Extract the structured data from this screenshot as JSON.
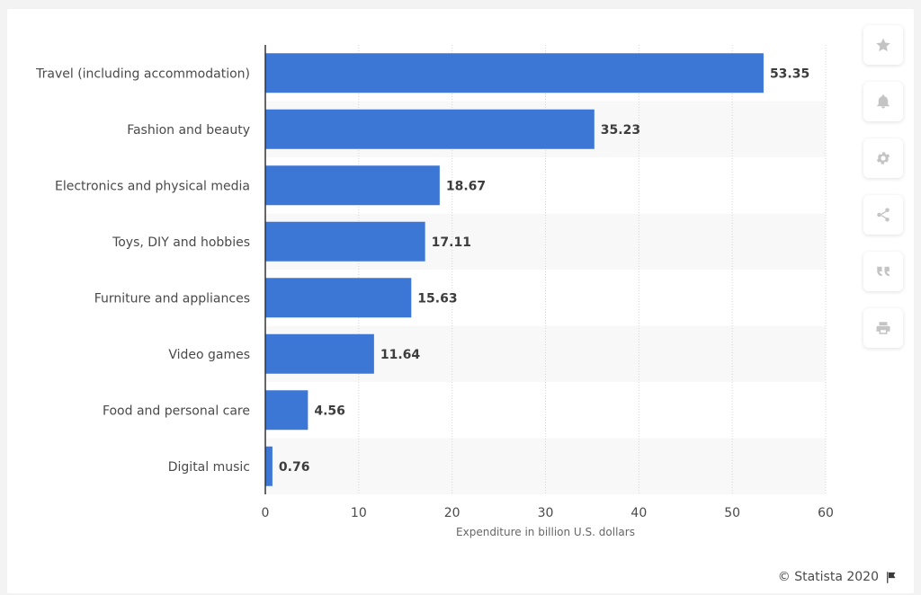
{
  "chart_data": {
    "type": "bar",
    "orientation": "horizontal",
    "categories": [
      "Travel (including accommodation)",
      "Fashion and beauty",
      "Electronics and physical media",
      "Toys, DIY and hobbies",
      "Furniture and appliances",
      "Video games",
      "Food and personal care",
      "Digital music"
    ],
    "values": [
      53.35,
      35.23,
      18.67,
      17.11,
      15.63,
      11.64,
      4.56,
      0.76
    ],
    "value_labels": [
      "53.35",
      "35.23",
      "18.67",
      "17.11",
      "15.63",
      "11.64",
      "4.56",
      "0.76"
    ],
    "xlabel": "Expenditure in billion U.S. dollars",
    "ylabel": "",
    "xlim": [
      0,
      60
    ],
    "xticks": [
      0,
      10,
      20,
      30,
      40,
      50,
      60
    ],
    "grid": "vertical dashed",
    "bar_color": "#3d77d6",
    "band_color": "#f8f8f8"
  },
  "toolbar": {
    "buttons": [
      {
        "name": "favorite-button",
        "icon": "star-icon"
      },
      {
        "name": "notification-button",
        "icon": "bell-icon"
      },
      {
        "name": "settings-button",
        "icon": "gear-icon"
      },
      {
        "name": "share-button",
        "icon": "share-icon"
      },
      {
        "name": "cite-button",
        "icon": "quote-icon"
      },
      {
        "name": "print-button",
        "icon": "printer-icon"
      }
    ]
  },
  "credit": {
    "text": "© Statista 2020",
    "icon": "flag-icon"
  }
}
